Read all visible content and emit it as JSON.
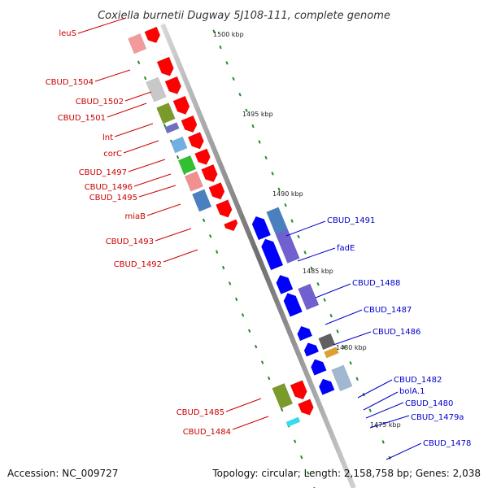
{
  "title": "Coxiella burnetii Dugway 5J108-111, complete genome",
  "footer": {
    "accession": "Accession: NC_009727",
    "summary": "Topology: circular; Length: 2,158,758 bp; Genes: 2,038"
  },
  "colors": {
    "forward_label": "#cc0000",
    "reverse_label": "#0000cc",
    "backbone": "#888888",
    "forward_cds": "#ff0000",
    "reverse_cds": "#0000ff",
    "tick": "#2a8a2a"
  },
  "kbp_marks": [
    "1500 kbp",
    "1495 kbp",
    "1490 kbp",
    "1485 kbp",
    "1480 kbp",
    "1475 kbp"
  ],
  "forward_labels": [
    "leuS",
    "CBUD_1504",
    "CBUD_1502",
    "CBUD_1501",
    "lnt",
    "corC",
    "CBUD_1497",
    "CBUD_1496",
    "CBUD_1495",
    "miaB",
    "CBUD_1493",
    "CBUD_1492",
    "CBUD_1485",
    "CBUD_1484"
  ],
  "reverse_labels": [
    "CBUD_1491",
    "fadE",
    "CBUD_1488",
    "CBUD_1487",
    "CBUD_1486",
    "CBUD_1482",
    "bolA.1",
    "CBUD_1480",
    "CBUD_1479a",
    "CBUD_1478"
  ]
}
